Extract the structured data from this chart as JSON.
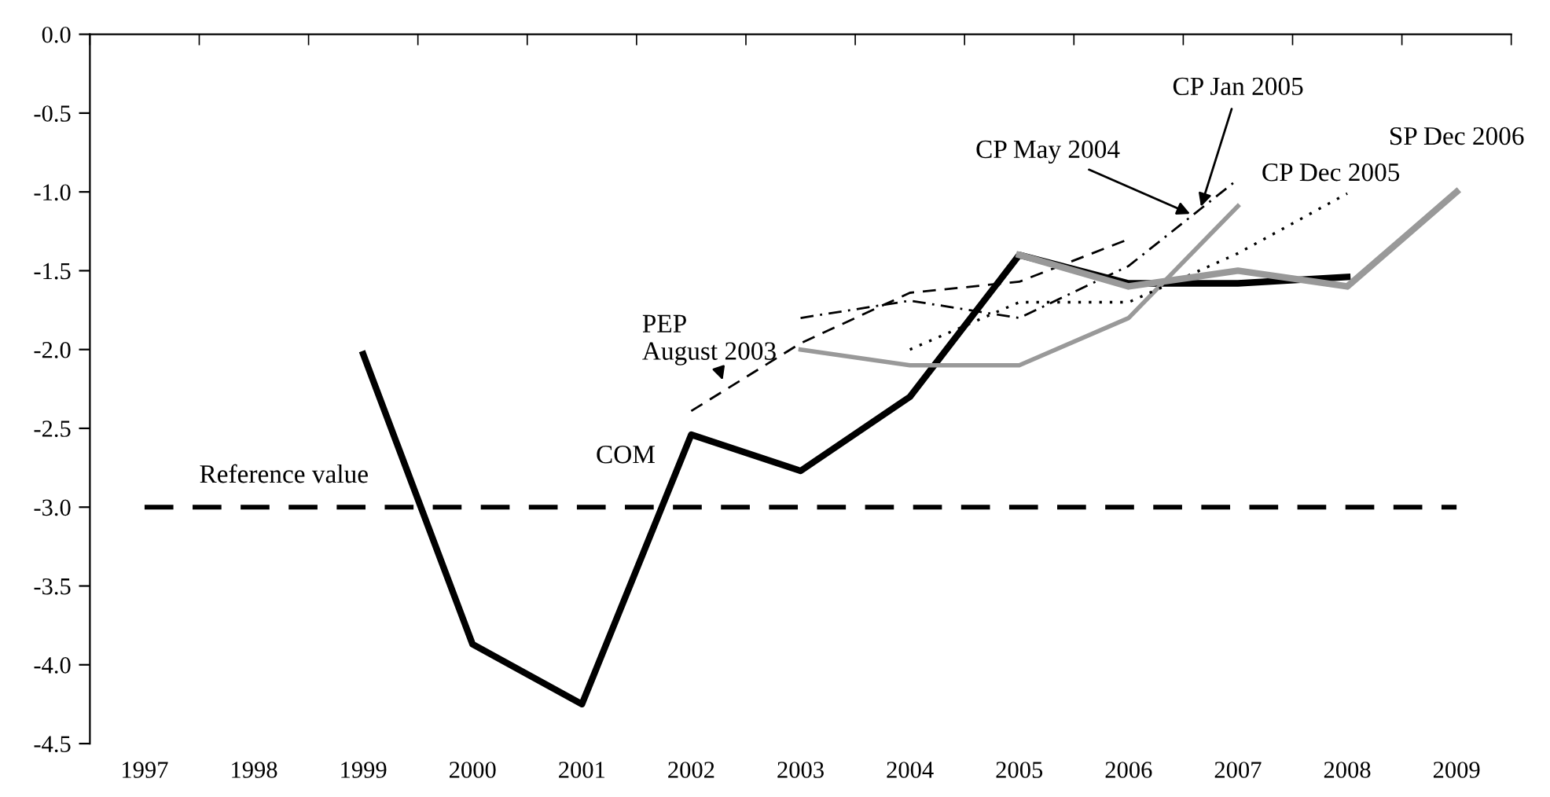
{
  "chart_data": {
    "type": "line",
    "categories": [
      "1997",
      "1998",
      "1999",
      "2000",
      "2001",
      "2002",
      "2003",
      "2004",
      "2005",
      "2006",
      "2007",
      "2008",
      "2009"
    ],
    "ylim": [
      -4.5,
      0.0
    ],
    "yticks": [
      {
        "value": 0,
        "label": "0.0"
      },
      {
        "value": -0.5,
        "label": "-0.5"
      },
      {
        "value": -1,
        "label": "-1.0"
      },
      {
        "value": -1.5,
        "label": "-1.5"
      },
      {
        "value": -2,
        "label": "-2.0"
      },
      {
        "value": -2.5,
        "label": "-2.5"
      },
      {
        "value": -3,
        "label": "-3.0"
      },
      {
        "value": -3.5,
        "label": "-3.5"
      },
      {
        "value": -4,
        "label": "-4.0"
      },
      {
        "value": -4.5,
        "label": "-4.5"
      }
    ],
    "grid": false,
    "legend": false,
    "marker": "none",
    "series": [
      {
        "name": "COM",
        "color": "#000000",
        "line_style": "solid",
        "values": [
          null,
          null,
          -2.03,
          -3.87,
          -4.25,
          -2.54,
          -2.77,
          -2.3,
          -1.4,
          -1.58,
          -1.58,
          -1.54,
          null
        ]
      },
      {
        "name": "PEP\nAugust 2003",
        "color": "#000000",
        "line_style": "dashed",
        "values": [
          null,
          null,
          null,
          null,
          null,
          -2.39,
          -1.96,
          -1.64,
          -1.57,
          -1.3,
          null,
          null,
          null
        ]
      },
      {
        "name": "CP May 2004",
        "color": "#000000",
        "line_style": "dashdot",
        "values": [
          null,
          null,
          null,
          null,
          null,
          null,
          -1.8,
          -1.69,
          -1.8,
          -1.47,
          -0.92,
          null,
          null
        ]
      },
      {
        "name": "CP Jan 2005",
        "color": "#999999",
        "line_style": "solid",
        "values": [
          null,
          null,
          null,
          null,
          null,
          null,
          -2.0,
          -2.1,
          -2.1,
          -1.8,
          -1.09,
          null,
          null
        ]
      },
      {
        "name": "CP Dec 2005",
        "color": "#000000",
        "line_style": "dotted",
        "values": [
          null,
          null,
          null,
          null,
          null,
          null,
          null,
          -2.0,
          -1.7,
          -1.7,
          -1.39,
          -1.01,
          null
        ]
      },
      {
        "name": "SP Dec 2006",
        "color": "#999999",
        "line_style": "solid",
        "values": [
          null,
          null,
          null,
          null,
          null,
          null,
          null,
          null,
          -1.4,
          -1.6,
          -1.5,
          -1.6,
          -1.0
        ]
      }
    ],
    "ref_lines": [
      {
        "axis": "y",
        "value": -3.0,
        "label": "Reference value",
        "color": "#000000",
        "line_style": "dashed"
      }
    ]
  }
}
